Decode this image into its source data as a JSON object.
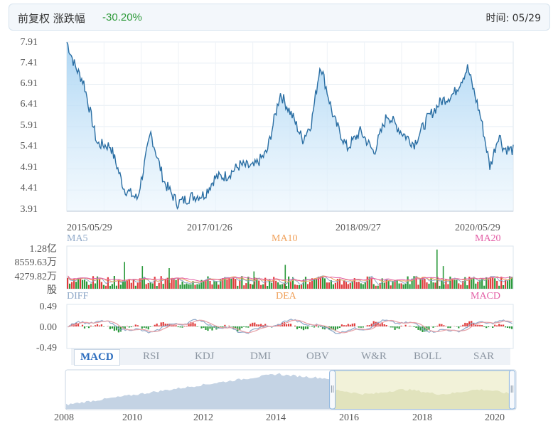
{
  "header": {
    "label": "前复权 涨跌幅",
    "change": "-30.20%",
    "time_label": "时间: 05/29"
  },
  "chart_data": [
    {
      "type": "area",
      "title": "",
      "y_ticks": [
        "7.91",
        "7.41",
        "6.91",
        "6.41",
        "5.91",
        "5.41",
        "4.91",
        "4.41",
        "3.91"
      ],
      "ylim": [
        3.91,
        7.91
      ],
      "x_ticks": [
        "2015/05/29",
        "2017/01/26",
        "2018/09/27",
        "2020/05/29"
      ],
      "grid": true,
      "x": [
        2015.41,
        2015.5,
        2015.6,
        2015.75,
        2015.9,
        2016.05,
        2016.2,
        2016.35,
        2016.5,
        2016.65,
        2016.8,
        2016.95,
        2017.07,
        2017.2,
        2017.35,
        2017.5,
        2017.65,
        2017.8,
        2017.95,
        2018.05,
        2018.15,
        2018.25,
        2018.4,
        2018.55,
        2018.7,
        2018.85,
        2019.0,
        2019.15,
        2019.3,
        2019.45,
        2019.6,
        2019.75,
        2019.9,
        2020.05,
        2020.15,
        2020.25,
        2020.3,
        2020.41
      ],
      "y": [
        7.91,
        7.35,
        6.95,
        5.5,
        5.45,
        4.45,
        4.2,
        5.75,
        4.6,
        4.1,
        4.25,
        4.3,
        4.7,
        4.75,
        5.0,
        4.95,
        5.3,
        6.7,
        6.1,
        5.6,
        6.0,
        7.4,
        6.1,
        5.4,
        5.8,
        5.3,
        6.2,
        5.8,
        5.5,
        6.1,
        6.5,
        6.7,
        7.3,
        6.1,
        4.95,
        5.75,
        5.4,
        5.35
      ]
    },
    {
      "type": "bar",
      "title": "",
      "y_ticks": [
        "1.28亿",
        "8559.63万",
        "4279.82万",
        "股"
      ],
      "series": [
        {
          "name": "MA5"
        },
        {
          "name": "MA10"
        },
        {
          "name": "MA20"
        }
      ],
      "spikes": [
        {
          "x": 2016.05,
          "value": 0.65
        },
        {
          "x": 2016.25,
          "value": 0.55
        },
        {
          "x": 2016.55,
          "value": 0.5
        },
        {
          "x": 2017.5,
          "value": 0.42
        },
        {
          "x": 2017.85,
          "value": 0.58
        },
        {
          "x": 2019.55,
          "value": 0.95
        },
        {
          "x": 2019.62,
          "value": 0.55
        }
      ]
    },
    {
      "type": "line",
      "title": "",
      "y_ticks": [
        "0.49",
        "0.00",
        "-0.49"
      ],
      "ylim": [
        -0.49,
        0.49
      ],
      "series": [
        {
          "name": "DIFF"
        },
        {
          "name": "DEA"
        },
        {
          "name": "MACD"
        }
      ]
    },
    {
      "type": "area",
      "title": "",
      "x_ticks": [
        "2008",
        "2010",
        "2012",
        "2014",
        "2016",
        "2018",
        "2020"
      ],
      "xlim": [
        2008,
        2020.5
      ],
      "selected_range": [
        2015.41,
        2020.41
      ]
    }
  ],
  "tabs": [
    "MACD",
    "RSI",
    "KDJ",
    "DMI",
    "OBV",
    "W&R",
    "BOLL",
    "SAR"
  ],
  "colors": {
    "price_line": "#2a6ea3",
    "area_fill": "#bfe0f7",
    "up": "#e03b3b",
    "down": "#2b9a3c",
    "ma5": "#8fa8c8",
    "ma10": "#f0a15b",
    "ma20": "#e35fa6",
    "change": "#2e9a3a"
  }
}
